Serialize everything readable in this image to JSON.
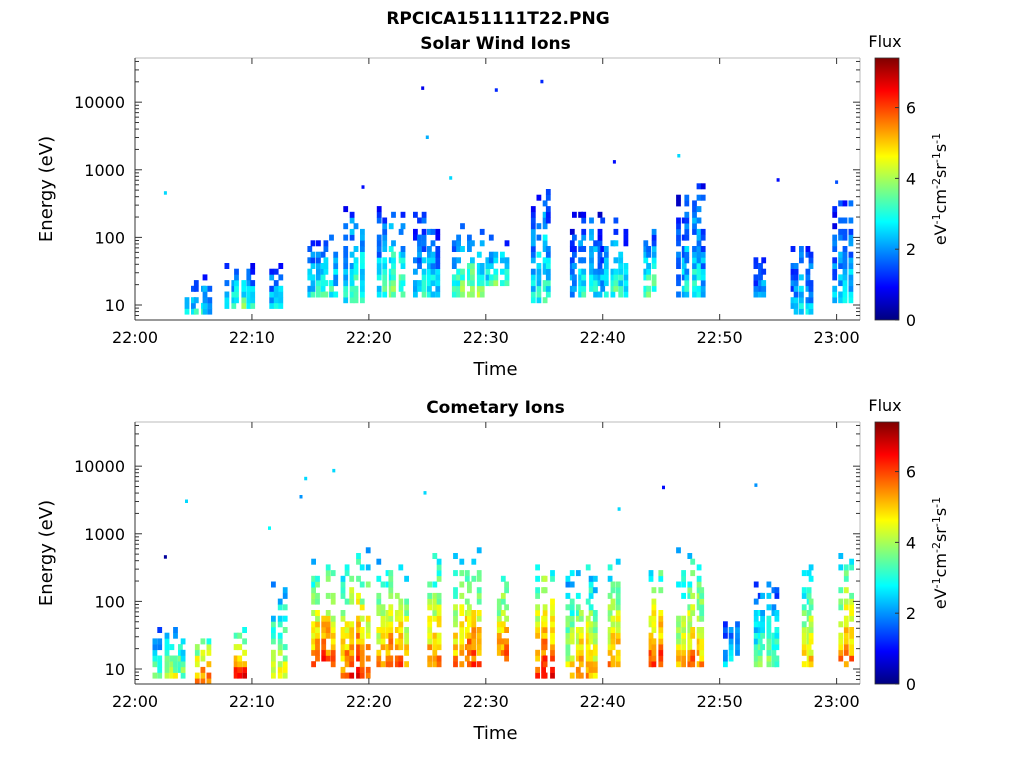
{
  "figure_title": "RPCICA151111T22.PNG",
  "colormap": [
    "#00007f",
    "#0000ff",
    "#007fff",
    "#00ffff",
    "#7fff7f",
    "#ffff00",
    "#ff7f00",
    "#ff0000",
    "#7f0000"
  ],
  "chart_data": [
    {
      "type": "heatmap",
      "title": "Solar Wind Ions",
      "xlabel": "Time",
      "ylabel": "Energy (eV)",
      "x_ticks": [
        "22:00",
        "22:10",
        "22:20",
        "22:30",
        "22:40",
        "22:50",
        "23:00"
      ],
      "x_range_minutes": [
        0,
        62
      ],
      "y_scale": "log",
      "y_ticks": [
        "10",
        "100",
        "1000",
        "10000"
      ],
      "y_range_eV": [
        6,
        45000
      ],
      "colorbar": {
        "title": "Flux",
        "label": "eV-1cm-2sr-1s-1",
        "ticks": [
          "0",
          "2",
          "4",
          "6"
        ],
        "range": [
          0,
          7.4
        ]
      },
      "clusters": [
        {
          "t": 5.5,
          "e_lo": 7,
          "e_hi": 28,
          "level": 3.2
        },
        {
          "t": 9.0,
          "e_lo": 9,
          "e_hi": 45,
          "level": 3.5
        },
        {
          "t": 12.0,
          "e_lo": 9,
          "e_hi": 60,
          "level": 2.8
        },
        {
          "t": 16.0,
          "e_lo": 12,
          "e_hi": 120,
          "level": 3.6
        },
        {
          "t": 18.7,
          "e_lo": 10,
          "e_hi": 350,
          "level": 3.5
        },
        {
          "t": 22.0,
          "e_lo": 12,
          "e_hi": 300,
          "level": 3.8
        },
        {
          "t": 25.0,
          "e_lo": 12,
          "e_hi": 250,
          "level": 3.2
        },
        {
          "t": 28.5,
          "e_lo": 14,
          "e_hi": 150,
          "level": 4.2
        },
        {
          "t": 31.0,
          "e_lo": 18,
          "e_hi": 110,
          "level": 3.8
        },
        {
          "t": 34.8,
          "e_lo": 10,
          "e_hi": 500,
          "level": 3.3
        },
        {
          "t": 38.5,
          "e_lo": 14,
          "e_hi": 250,
          "level": 3.2
        },
        {
          "t": 41.0,
          "e_lo": 14,
          "e_hi": 200,
          "level": 3.3
        },
        {
          "t": 44.0,
          "e_lo": 14,
          "e_hi": 130,
          "level": 3.6
        },
        {
          "t": 47.5,
          "e_lo": 14,
          "e_hi": 600,
          "level": 3.0
        },
        {
          "t": 53.5,
          "e_lo": 12,
          "e_hi": 60,
          "level": 2.5
        },
        {
          "t": 57.0,
          "e_lo": 7,
          "e_hi": 120,
          "level": 2.8
        },
        {
          "t": 60.5,
          "e_lo": 10,
          "e_hi": 500,
          "level": 2.8
        }
      ],
      "sparse_points": [
        {
          "t": 2.6,
          "e": 450,
          "level": 2.5
        },
        {
          "t": 24.6,
          "e": 16000,
          "level": 0.8
        },
        {
          "t": 25.0,
          "e": 3000,
          "level": 2.2
        },
        {
          "t": 30.9,
          "e": 15000,
          "level": 1.2
        },
        {
          "t": 34.8,
          "e": 20000,
          "level": 1.2
        },
        {
          "t": 41.0,
          "e": 1300,
          "level": 1.0
        },
        {
          "t": 46.5,
          "e": 1600,
          "level": 2.5
        },
        {
          "t": 27.0,
          "e": 750,
          "level": 2.5
        },
        {
          "t": 55.0,
          "e": 700,
          "level": 1.0
        },
        {
          "t": 19.5,
          "e": 550,
          "level": 1.0
        },
        {
          "t": 60.0,
          "e": 650,
          "level": 1.5
        }
      ]
    },
    {
      "type": "heatmap",
      "title": "Cometary Ions",
      "xlabel": "Time",
      "ylabel": "Energy (eV)",
      "x_ticks": [
        "22:00",
        "22:10",
        "22:20",
        "22:30",
        "22:40",
        "22:50",
        "23:00"
      ],
      "x_range_minutes": [
        0,
        62
      ],
      "y_scale": "log",
      "y_ticks": [
        "10",
        "100",
        "1000",
        "10000"
      ],
      "y_range_eV": [
        6,
        45000
      ],
      "colorbar": {
        "title": "Flux",
        "label": "eV-1cm-2sr-1s-1",
        "ticks": [
          "0",
          "2",
          "4",
          "6"
        ],
        "range": [
          0,
          7.4
        ]
      },
      "clusters": [
        {
          "t": 3.0,
          "e_lo": 7,
          "e_hi": 45,
          "level": 4.5
        },
        {
          "t": 5.8,
          "e_lo": 6,
          "e_hi": 35,
          "level": 6.2
        },
        {
          "t": 9.0,
          "e_lo": 8,
          "e_hi": 45,
          "level": 6.6
        },
        {
          "t": 12.3,
          "e_lo": 8,
          "e_hi": 250,
          "level": 4.5
        },
        {
          "t": 16.0,
          "e_lo": 10,
          "e_hi": 400,
          "level": 6.4
        },
        {
          "t": 18.8,
          "e_lo": 8,
          "e_hi": 600,
          "level": 6.4
        },
        {
          "t": 22.0,
          "e_lo": 10,
          "e_hi": 450,
          "level": 6.2
        },
        {
          "t": 25.5,
          "e_lo": 10,
          "e_hi": 500,
          "level": 6.0
        },
        {
          "t": 28.5,
          "e_lo": 10,
          "e_hi": 600,
          "level": 6.4
        },
        {
          "t": 31.5,
          "e_lo": 12,
          "e_hi": 300,
          "level": 6.2
        },
        {
          "t": 35.0,
          "e_lo": 7,
          "e_hi": 450,
          "level": 6.6
        },
        {
          "t": 38.3,
          "e_lo": 8,
          "e_hi": 400,
          "level": 5.6
        },
        {
          "t": 41.0,
          "e_lo": 10,
          "e_hi": 450,
          "level": 5.8
        },
        {
          "t": 44.5,
          "e_lo": 10,
          "e_hi": 400,
          "level": 6.4
        },
        {
          "t": 47.5,
          "e_lo": 10,
          "e_hi": 600,
          "level": 5.8
        },
        {
          "t": 51.0,
          "e_lo": 10,
          "e_hi": 60,
          "level": 3.0
        },
        {
          "t": 54.0,
          "e_lo": 10,
          "e_hi": 200,
          "level": 4.2
        },
        {
          "t": 57.5,
          "e_lo": 10,
          "e_hi": 350,
          "level": 5.4
        },
        {
          "t": 60.8,
          "e_lo": 10,
          "e_hi": 600,
          "level": 6.0
        }
      ],
      "sparse_points": [
        {
          "t": 2.6,
          "e": 450,
          "level": 0.2
        },
        {
          "t": 4.4,
          "e": 3000,
          "level": 2.5
        },
        {
          "t": 14.6,
          "e": 6500,
          "level": 2.5
        },
        {
          "t": 17.0,
          "e": 8500,
          "level": 2.5
        },
        {
          "t": 14.2,
          "e": 3500,
          "level": 2.0
        },
        {
          "t": 24.8,
          "e": 4000,
          "level": 2.5
        },
        {
          "t": 41.4,
          "e": 2300,
          "level": 2.5
        },
        {
          "t": 45.2,
          "e": 4800,
          "level": 1.0
        },
        {
          "t": 53.1,
          "e": 5200,
          "level": 2.0
        },
        {
          "t": 11.5,
          "e": 1200,
          "level": 2.8
        }
      ]
    }
  ]
}
